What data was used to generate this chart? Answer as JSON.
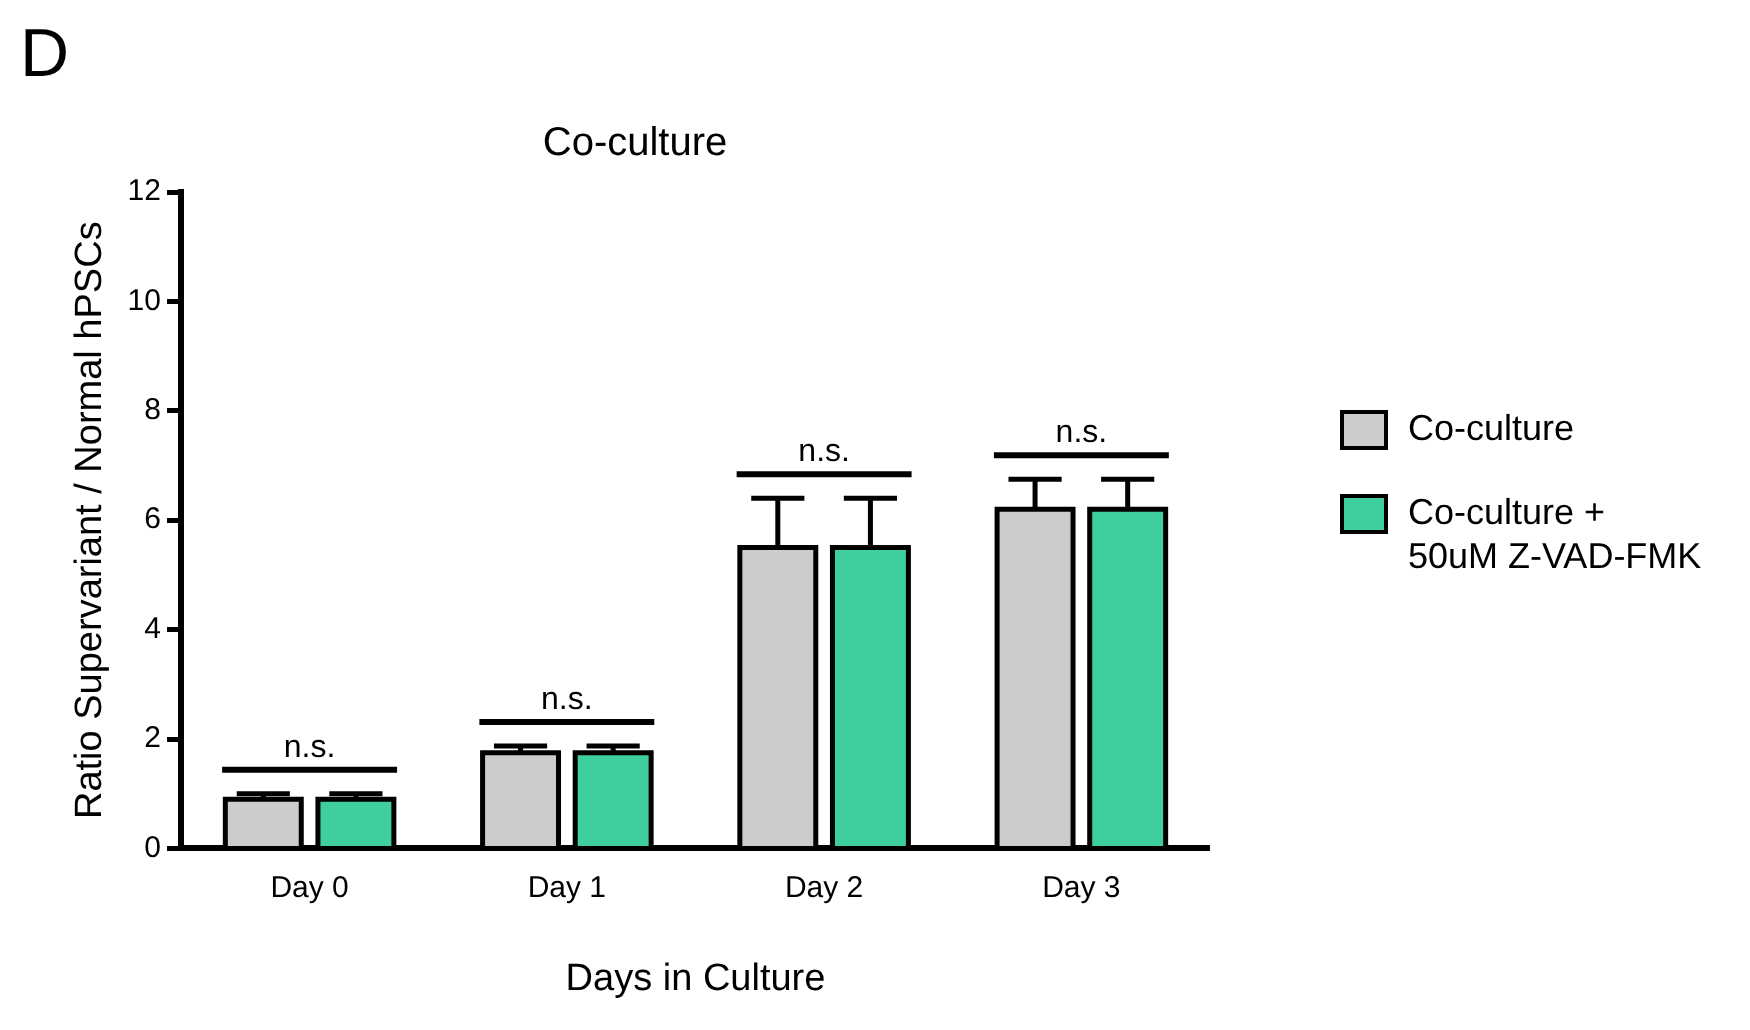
{
  "chart_data": {
    "type": "bar",
    "title": "Co-culture",
    "xlabel": "Days in Culture",
    "ylabel": "Ratio Supervariant / Normal hPSCs",
    "categories": [
      "Day 0",
      "Day 1",
      "Day 2",
      "Day 3"
    ],
    "series": [
      {
        "name": "Co-culture",
        "color": "#cccccc",
        "values": [
          0.9,
          1.75,
          5.5,
          6.2
        ],
        "errors": [
          [
            0.9,
            1.0
          ],
          [
            1.75,
            1.87
          ],
          [
            5.5,
            6.4
          ],
          [
            6.2,
            6.75
          ]
        ]
      },
      {
        "name": "Co-culture + 50uM Z-VAD-FMK",
        "color": "#3ecf9d",
        "values": [
          0.9,
          1.75,
          5.5,
          6.2
        ],
        "errors": [
          [
            0.9,
            1.0
          ],
          [
            1.75,
            1.87
          ],
          [
            5.5,
            6.4
          ],
          [
            6.2,
            6.75
          ]
        ]
      }
    ],
    "ylim": [
      0,
      12
    ],
    "yticks": [
      0,
      2,
      4,
      6,
      8,
      10,
      12
    ],
    "grid": false,
    "legend": "right",
    "annotations": [
      "D",
      "n.s.",
      "n.s.",
      "n.s.",
      "n.s."
    ]
  }
}
